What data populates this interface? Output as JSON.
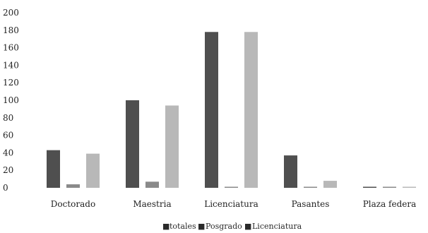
{
  "chart_data": {
    "type": "bar",
    "categories": [
      "Doctorado",
      "Maestria",
      "Licenciatura",
      "Pasantes",
      "Plaza federa"
    ],
    "series": [
      {
        "name": "totales",
        "values": [
          43,
          100,
          178,
          37,
          1
        ],
        "color": "#4f4f4f"
      },
      {
        "name": "Posgrado",
        "values": [
          4,
          7,
          0,
          0,
          0
        ],
        "color": "#8a8a8a"
      },
      {
        "name": "Licenciatura",
        "values": [
          39,
          94,
          178,
          8,
          1
        ],
        "color": "#b8b8b8"
      }
    ],
    "yticks": [
      "0",
      "20",
      "40",
      "60",
      "80",
      "100",
      "120",
      "140",
      "160",
      "180",
      "200"
    ],
    "ylim": [
      0,
      200
    ],
    "legend_markers": [
      "■",
      "■",
      "■"
    ],
    "grid": false,
    "legend_position": "bottom"
  }
}
